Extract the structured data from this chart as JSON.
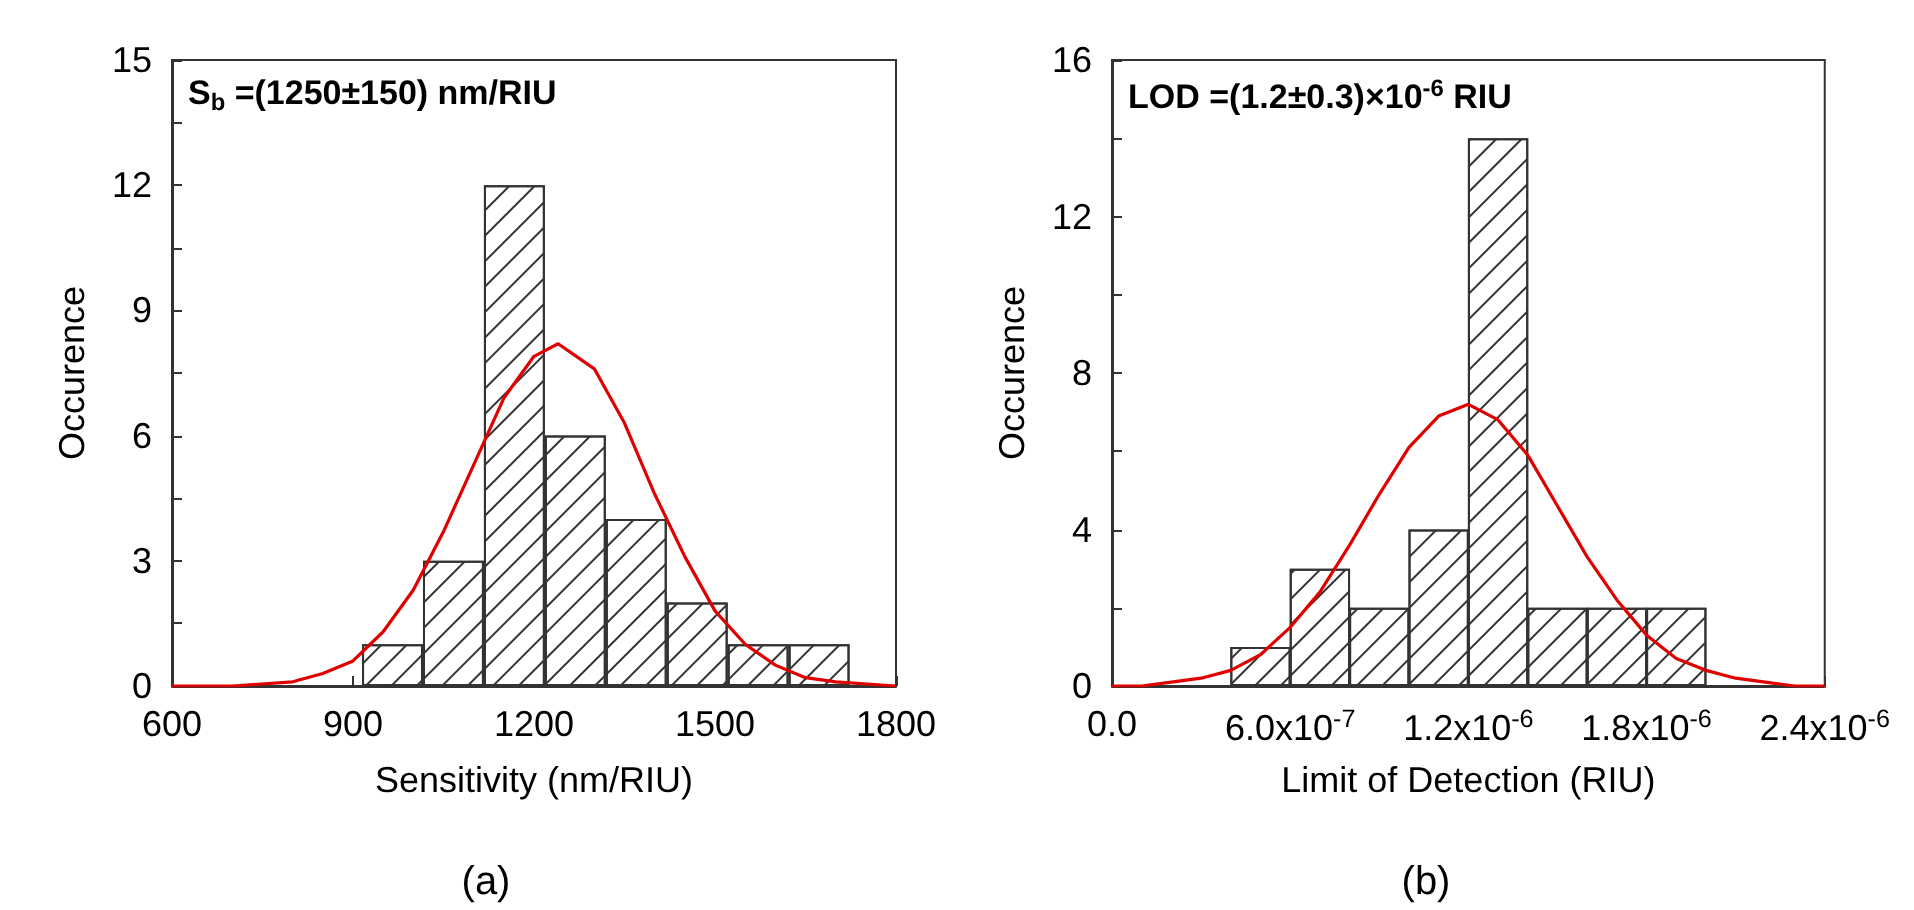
{
  "chart_data": [
    {
      "type": "histogram",
      "xlabel": "Sensitivity (nm/RIU)",
      "ylabel": "Occurence",
      "annotations": [
        "S$_{b}$ =(1250±150) nm/RIU",
        "(a)"
      ],
      "xlim": [
        600,
        1800
      ],
      "xticks": [
        600,
        900,
        1200,
        1500,
        1800
      ],
      "ylim": [
        0,
        15
      ],
      "yticks": [
        0,
        {
          "value": 1.5,
          "label": null
        },
        3,
        {
          "value": 4.5,
          "label": null
        },
        6,
        {
          "value": 7.5,
          "label": null
        },
        9,
        {
          "value": 10.5,
          "label": null
        },
        12,
        {
          "value": 13.5,
          "label": null
        },
        15
      ],
      "series": [
        {
          "type": "histogram",
          "color": "#ffffff",
          "bins": [
            915,
            1016,
            1117,
            1218,
            1319,
            1420,
            1521,
            1622,
            1723
          ],
          "values": [
            1,
            3,
            12,
            6,
            4,
            2,
            1,
            1
          ]
        },
        {
          "type": "line",
          "color": "#e00000",
          "marker": "none",
          "x": [
            600,
            700,
            800,
            850,
            900,
            950,
            1000,
            1050,
            1100,
            1150,
            1200,
            1240,
            1300,
            1350,
            1400,
            1450,
            1500,
            1550,
            1600,
            1650,
            1700,
            1800
          ],
          "values": [
            0,
            0,
            0.1,
            0.3,
            0.6,
            1.3,
            2.3,
            3.7,
            5.3,
            6.9,
            7.9,
            8.2,
            7.6,
            6.3,
            4.6,
            3.1,
            1.8,
            1.0,
            0.5,
            0.2,
            0.1,
            0
          ]
        }
      ]
    },
    {
      "type": "histogram",
      "xlabel": "Limit of Detection (RIU)",
      "ylabel": "Occurence",
      "annotations": [
        "LOD =(1.2±0.3)×10$^{-6}$ RIU",
        "(b)"
      ],
      "xlim": [
        0,
        2.4e-06
      ],
      "xticks": [
        {
          "value": 0,
          "label": "0.0"
        },
        {
          "value": 6e-07,
          "label": "6.0x10$^{-7}$"
        },
        {
          "value": 1.2e-06,
          "label": "1.2x10$^{-6}$"
        },
        {
          "value": 1.8e-06,
          "label": "1.8x10$^{-6}$"
        },
        {
          "value": 2.4e-06,
          "label": "2.4x10$^{-6}$"
        }
      ],
      "ylim": [
        0,
        16
      ],
      "yticks": [
        0,
        {
          "value": 2,
          "label": null
        },
        4,
        {
          "value": 6,
          "label": null
        },
        8,
        {
          "value": 10,
          "label": null
        },
        12,
        {
          "value": 14,
          "label": null
        },
        16
      ],
      "series": [
        {
          "type": "histogram",
          "color": "#ffffff",
          "bins": [
            4e-07,
            6e-07,
            8e-07,
            1e-06,
            1.2e-06,
            1.4e-06,
            1.6e-06,
            1.8e-06,
            2e-06
          ],
          "values": [
            1,
            3,
            2,
            4,
            14,
            2,
            2,
            2
          ]
        },
        {
          "type": "line",
          "color": "#e00000",
          "marker": "none",
          "x": [
            0,
            1e-07,
            2e-07,
            3e-07,
            4e-07,
            5e-07,
            6e-07,
            7e-07,
            8e-07,
            9e-07,
            1e-06,
            1.1e-06,
            1.2e-06,
            1.3e-06,
            1.4e-06,
            1.5e-06,
            1.6e-06,
            1.7e-06,
            1.8e-06,
            1.9e-06,
            2e-06,
            2.1e-06,
            2.2e-06,
            2.3e-06,
            2.4e-06
          ],
          "values": [
            0,
            0,
            0.1,
            0.2,
            0.4,
            0.8,
            1.5,
            2.4,
            3.6,
            4.9,
            6.1,
            6.9,
            7.2,
            6.8,
            5.9,
            4.6,
            3.3,
            2.2,
            1.3,
            0.7,
            0.4,
            0.2,
            0.1,
            0,
            0
          ]
        }
      ]
    }
  ]
}
